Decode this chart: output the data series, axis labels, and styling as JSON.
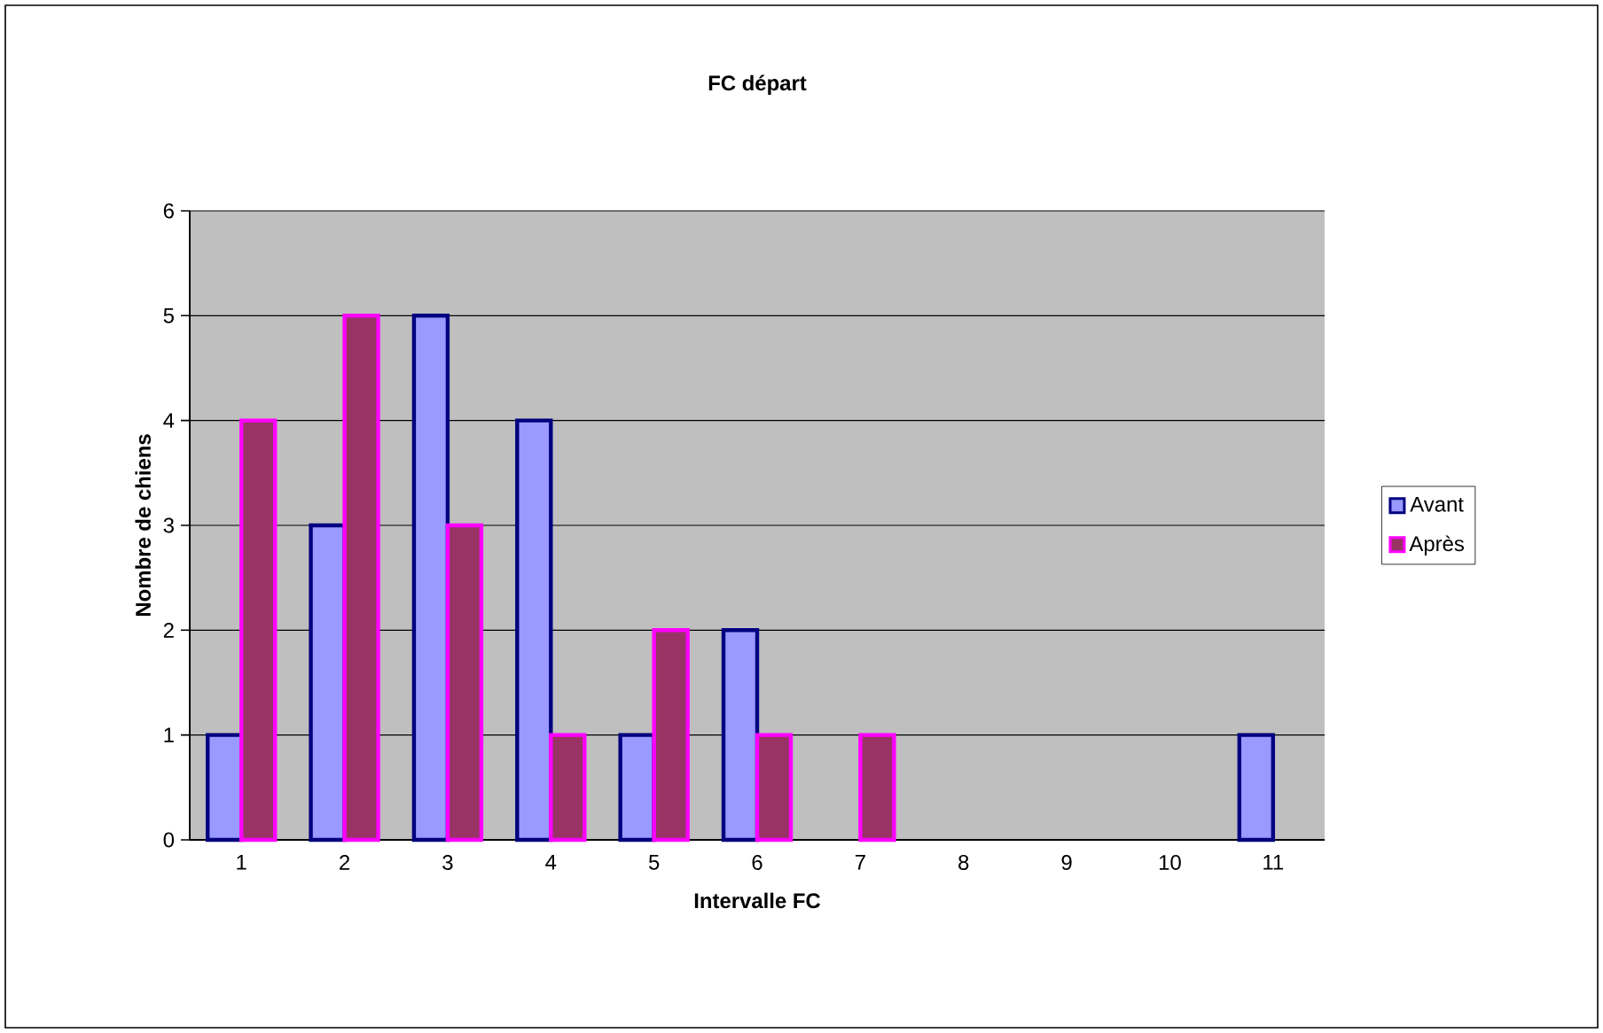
{
  "chart_data": {
    "type": "bar",
    "title": "FC départ",
    "xlabel": "Intervalle FC",
    "ylabel": "Nombre de chiens",
    "categories": [
      "1",
      "2",
      "3",
      "4",
      "5",
      "6",
      "7",
      "8",
      "9",
      "10",
      "11"
    ],
    "series": [
      {
        "name": "Avant",
        "color": "#9999ff",
        "values": [
          1,
          3,
          5,
          4,
          1,
          2,
          0,
          0,
          0,
          0,
          1
        ]
      },
      {
        "name": "Après",
        "color": "#993366",
        "values": [
          4,
          5,
          3,
          1,
          2,
          1,
          1,
          0,
          0,
          0,
          0
        ]
      }
    ],
    "ylim": [
      0,
      6
    ],
    "yticks": [
      0,
      1,
      2,
      3,
      4,
      5,
      6
    ],
    "grid": "y",
    "legend": "right"
  }
}
